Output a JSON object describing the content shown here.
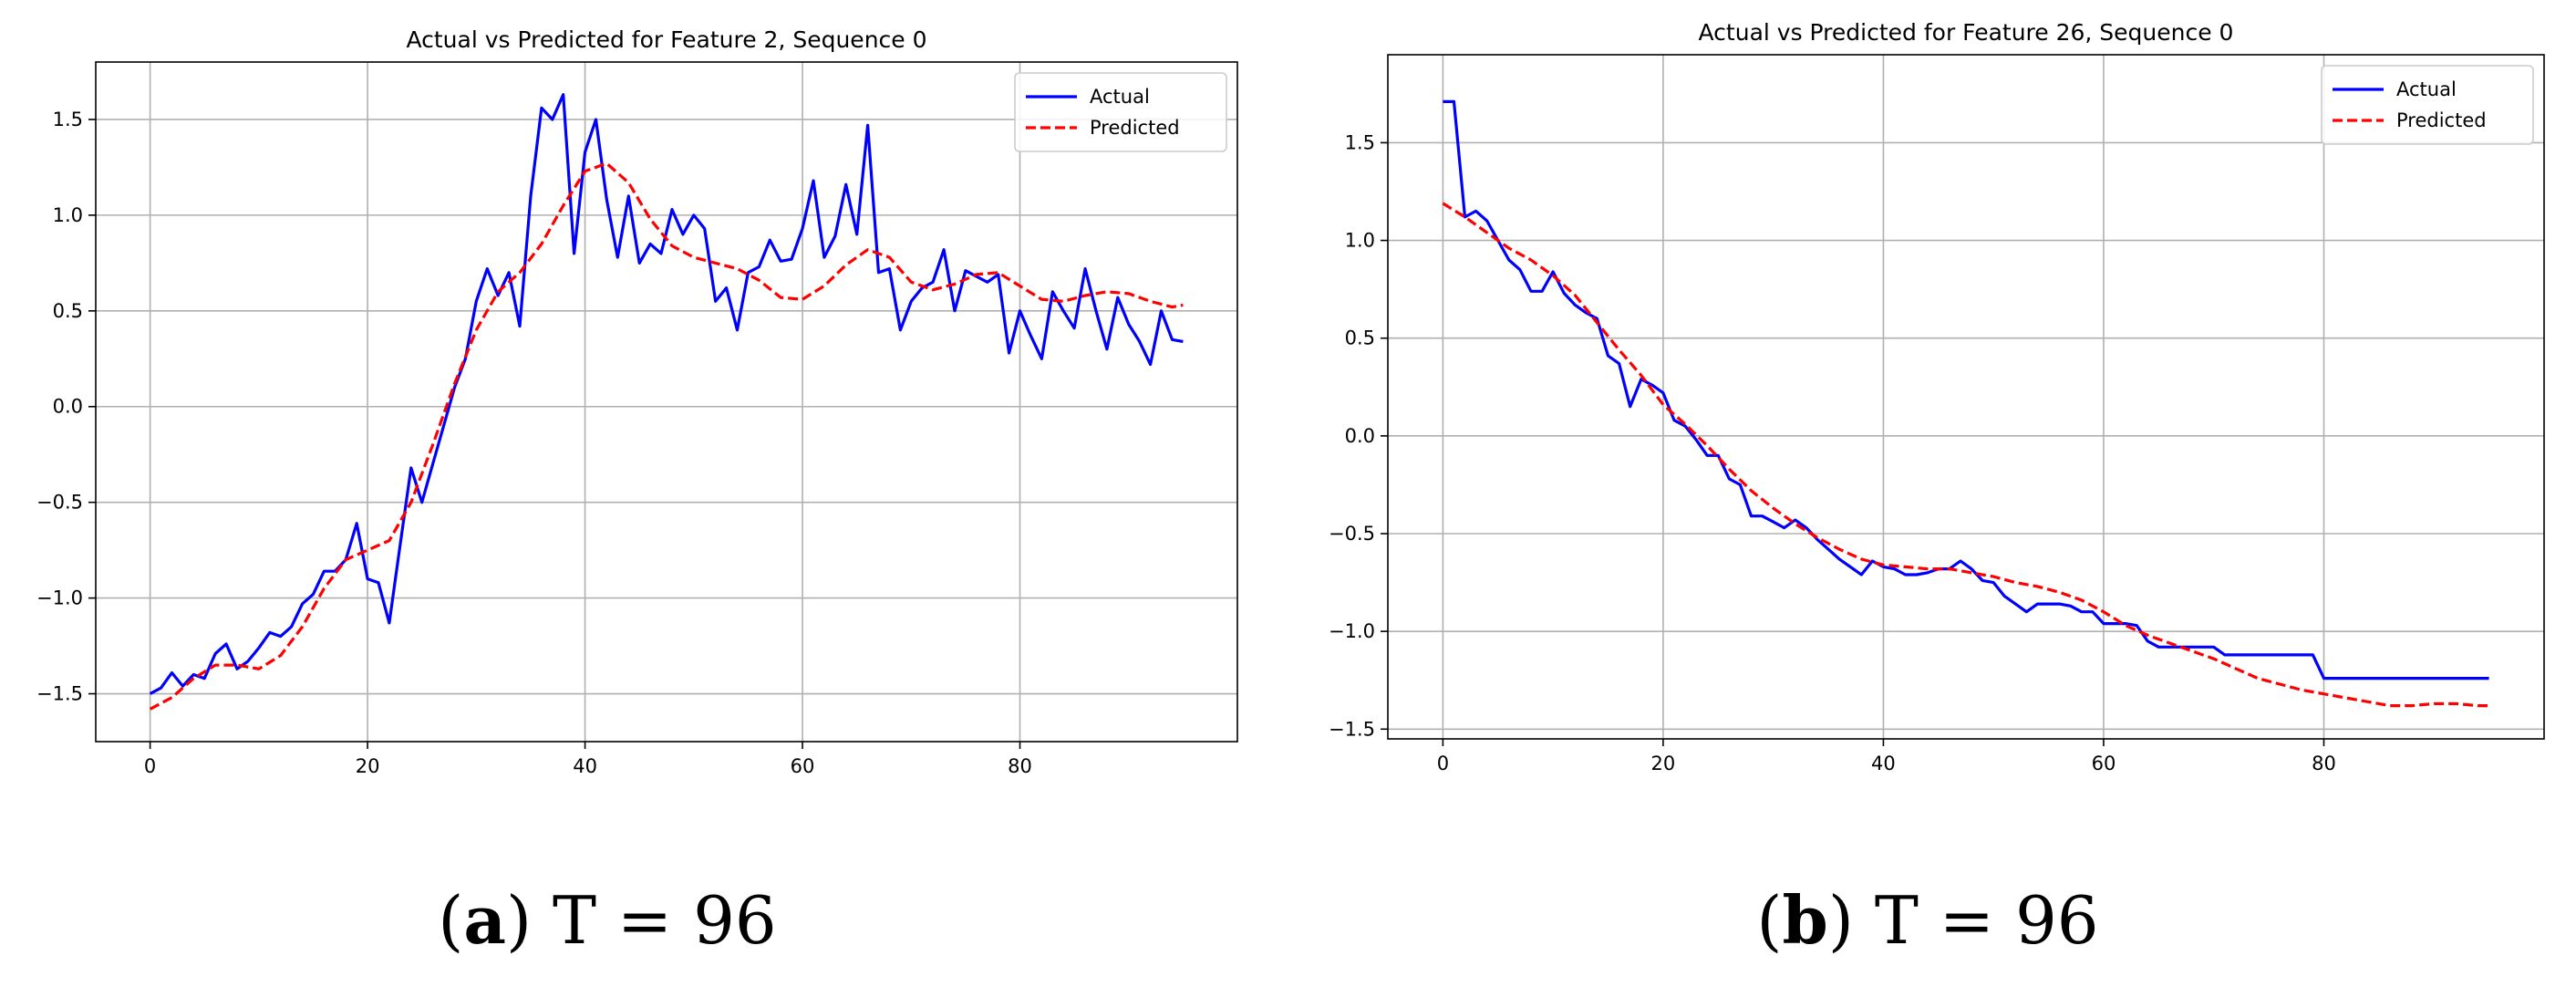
{
  "chart_data": [
    {
      "type": "line",
      "title": "Actual vs Predicted for Feature 2, Sequence 0",
      "xlabel": "",
      "ylabel": "",
      "xlim": [
        -5,
        100
      ],
      "ylim": [
        -1.75,
        1.8
      ],
      "xticks": [
        0,
        20,
        40,
        60,
        80
      ],
      "yticks": [
        -1.5,
        -1.0,
        -0.5,
        0.0,
        0.5,
        1.0,
        1.5
      ],
      "grid": true,
      "legend": "top-right",
      "caption": {
        "label": "a",
        "text": " T = 96"
      },
      "series": [
        {
          "name": "Actual",
          "color": "#0000ff",
          "style": "solid",
          "x": [
            0,
            1,
            2,
            3,
            4,
            5,
            6,
            7,
            8,
            9,
            10,
            11,
            12,
            13,
            14,
            15,
            16,
            17,
            18,
            19,
            20,
            21,
            22,
            23,
            24,
            25,
            26,
            27,
            28,
            29,
            30,
            31,
            32,
            33,
            34,
            35,
            36,
            37,
            38,
            39,
            40,
            41,
            42,
            43,
            44,
            45,
            46,
            47,
            48,
            49,
            50,
            51,
            52,
            53,
            54,
            55,
            56,
            57,
            58,
            59,
            60,
            61,
            62,
            63,
            64,
            65,
            66,
            67,
            68,
            69,
            70,
            71,
            72,
            73,
            74,
            75,
            76,
            77,
            78,
            79,
            80,
            81,
            82,
            83,
            84,
            85,
            86,
            87,
            88,
            89,
            90,
            91,
            92,
            93,
            94,
            95
          ],
          "y": [
            -1.5,
            -1.47,
            -1.39,
            -1.46,
            -1.4,
            -1.42,
            -1.29,
            -1.24,
            -1.37,
            -1.33,
            -1.26,
            -1.18,
            -1.2,
            -1.15,
            -1.03,
            -0.98,
            -0.86,
            -0.86,
            -0.8,
            -0.61,
            -0.9,
            -0.92,
            -1.13,
            -0.72,
            -0.32,
            -0.5,
            -0.3,
            -0.1,
            0.1,
            0.25,
            0.55,
            0.72,
            0.58,
            0.7,
            0.42,
            1.1,
            1.56,
            1.5,
            1.63,
            0.8,
            1.33,
            1.5,
            1.08,
            0.78,
            1.1,
            0.75,
            0.85,
            0.8,
            1.03,
            0.9,
            1.0,
            0.93,
            0.55,
            0.62,
            0.4,
            0.7,
            0.73,
            0.87,
            0.76,
            0.77,
            0.93,
            1.18,
            0.78,
            0.89,
            1.16,
            0.9,
            1.47,
            0.7,
            0.72,
            0.4,
            0.55,
            0.62,
            0.65,
            0.82,
            0.5,
            0.71,
            0.68,
            0.65,
            0.69,
            0.28,
            0.5,
            0.37,
            0.25,
            0.6,
            0.5,
            0.41,
            0.72,
            0.5,
            0.3,
            0.57,
            0.43,
            0.34,
            0.22,
            0.5,
            0.35,
            0.34
          ]
        },
        {
          "name": "Predicted",
          "color": "#ff0000",
          "style": "dashed",
          "x": [
            0,
            2,
            4,
            6,
            8,
            10,
            12,
            14,
            16,
            18,
            20,
            22,
            24,
            26,
            28,
            30,
            32,
            34,
            36,
            38,
            40,
            42,
            44,
            46,
            48,
            50,
            52,
            54,
            56,
            58,
            60,
            62,
            64,
            66,
            68,
            70,
            72,
            74,
            76,
            78,
            80,
            82,
            84,
            86,
            88,
            90,
            92,
            94,
            95
          ],
          "y": [
            -1.58,
            -1.52,
            -1.42,
            -1.35,
            -1.35,
            -1.37,
            -1.3,
            -1.15,
            -0.95,
            -0.8,
            -0.75,
            -0.7,
            -0.5,
            -0.2,
            0.12,
            0.4,
            0.6,
            0.7,
            0.85,
            1.05,
            1.23,
            1.27,
            1.17,
            0.98,
            0.84,
            0.78,
            0.75,
            0.72,
            0.66,
            0.57,
            0.56,
            0.63,
            0.74,
            0.82,
            0.78,
            0.65,
            0.61,
            0.64,
            0.69,
            0.7,
            0.63,
            0.56,
            0.55,
            0.58,
            0.6,
            0.59,
            0.55,
            0.52,
            0.53
          ]
        }
      ]
    },
    {
      "type": "line",
      "title": "Actual vs Predicted for Feature 26, Sequence 0",
      "xlabel": "",
      "ylabel": "",
      "xlim": [
        -5,
        100
      ],
      "ylim": [
        -1.55,
        1.95
      ],
      "xticks": [
        0,
        20,
        40,
        60,
        80
      ],
      "yticks": [
        -1.5,
        -1.0,
        -0.5,
        0.0,
        0.5,
        1.0,
        1.5
      ],
      "grid": true,
      "legend": "top-right",
      "caption": {
        "label": "b",
        "text": " T = 96"
      },
      "series": [
        {
          "name": "Actual",
          "color": "#0000ff",
          "style": "solid",
          "x": [
            0,
            1,
            2,
            3,
            4,
            5,
            6,
            7,
            8,
            9,
            10,
            11,
            12,
            13,
            14,
            15,
            16,
            17,
            18,
            19,
            20,
            21,
            22,
            23,
            24,
            25,
            26,
            27,
            28,
            29,
            30,
            31,
            32,
            33,
            34,
            35,
            36,
            37,
            38,
            39,
            40,
            41,
            42,
            43,
            44,
            45,
            46,
            47,
            48,
            49,
            50,
            51,
            52,
            53,
            54,
            55,
            56,
            57,
            58,
            59,
            60,
            61,
            62,
            63,
            64,
            65,
            66,
            67,
            68,
            69,
            70,
            71,
            72,
            73,
            74,
            75,
            76,
            77,
            78,
            79,
            80,
            81,
            82,
            83,
            84,
            85,
            86,
            87,
            88,
            89,
            90,
            91,
            92,
            93,
            94,
            95
          ],
          "y": [
            1.71,
            1.71,
            1.12,
            1.15,
            1.1,
            1.0,
            0.9,
            0.85,
            0.74,
            0.74,
            0.84,
            0.73,
            0.67,
            0.63,
            0.6,
            0.41,
            0.37,
            0.15,
            0.29,
            0.26,
            0.22,
            0.08,
            0.05,
            -0.02,
            -0.1,
            -0.1,
            -0.22,
            -0.25,
            -0.41,
            -0.41,
            -0.44,
            -0.47,
            -0.43,
            -0.47,
            -0.53,
            -0.58,
            -0.63,
            -0.67,
            -0.71,
            -0.64,
            -0.67,
            -0.68,
            -0.71,
            -0.71,
            -0.7,
            -0.68,
            -0.68,
            -0.64,
            -0.68,
            -0.74,
            -0.75,
            -0.82,
            -0.86,
            -0.9,
            -0.86,
            -0.86,
            -0.86,
            -0.87,
            -0.9,
            -0.9,
            -0.96,
            -0.96,
            -0.96,
            -0.97,
            -1.05,
            -1.08,
            -1.08,
            -1.08,
            -1.08,
            -1.08,
            -1.08,
            -1.12,
            -1.12,
            -1.12,
            -1.12,
            -1.12,
            -1.12,
            -1.12,
            -1.12,
            -1.12,
            -1.24,
            -1.24,
            -1.24,
            -1.24,
            -1.24,
            -1.24,
            -1.24,
            -1.24,
            -1.24,
            -1.24,
            -1.24,
            -1.24,
            -1.24,
            -1.24,
            -1.24,
            -1.24
          ]
        },
        {
          "name": "Predicted",
          "color": "#ff0000",
          "style": "dashed",
          "x": [
            0,
            2,
            4,
            6,
            8,
            10,
            12,
            14,
            16,
            18,
            20,
            22,
            24,
            26,
            28,
            30,
            32,
            34,
            36,
            38,
            40,
            42,
            44,
            46,
            48,
            50,
            52,
            54,
            56,
            58,
            60,
            62,
            64,
            66,
            68,
            70,
            72,
            74,
            76,
            78,
            80,
            82,
            84,
            86,
            88,
            90,
            92,
            94,
            95
          ],
          "y": [
            1.19,
            1.12,
            1.04,
            0.96,
            0.9,
            0.82,
            0.72,
            0.58,
            0.44,
            0.31,
            0.16,
            0.06,
            -0.05,
            -0.17,
            -0.28,
            -0.37,
            -0.45,
            -0.52,
            -0.58,
            -0.63,
            -0.66,
            -0.67,
            -0.68,
            -0.68,
            -0.7,
            -0.72,
            -0.75,
            -0.77,
            -0.8,
            -0.84,
            -0.9,
            -0.97,
            -1.02,
            -1.06,
            -1.1,
            -1.14,
            -1.19,
            -1.24,
            -1.27,
            -1.3,
            -1.32,
            -1.34,
            -1.36,
            -1.38,
            -1.38,
            -1.37,
            -1.37,
            -1.38,
            -1.38
          ]
        }
      ]
    }
  ]
}
